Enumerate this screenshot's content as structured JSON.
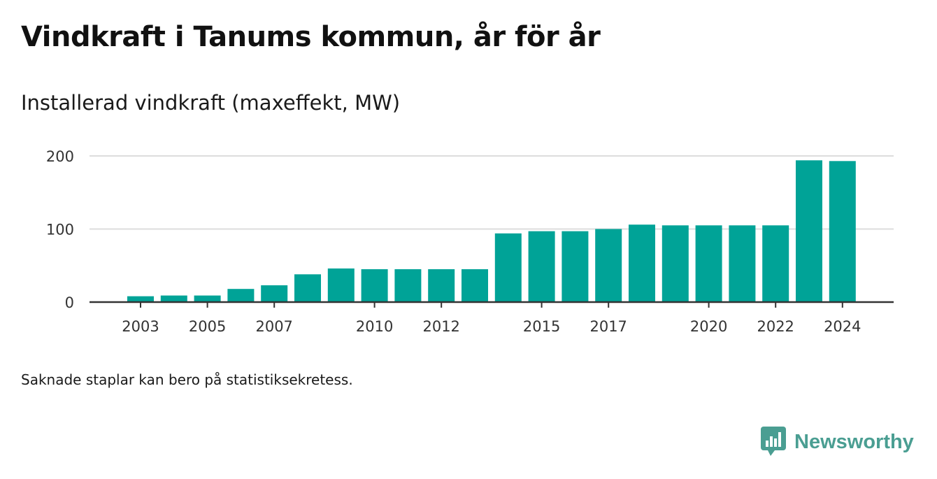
{
  "title": "Vindkraft i Tanums kommun, år för år",
  "subtitle": "Installerad vindkraft (maxeffekt, MW)",
  "footnote": "Saknade staplar kan bero på statistiksekretess.",
  "brand": {
    "name": "Newsworthy",
    "icon": "newsworthy-logo-icon",
    "color": "#4a9e92"
  },
  "colors": {
    "bar": "#00a397",
    "grid": "#dddddd",
    "axis": "#333333"
  },
  "chart_data": {
    "type": "bar",
    "title": "Vindkraft i Tanums kommun, år för år",
    "subtitle": "Installerad vindkraft (maxeffekt, MW)",
    "xlabel": "",
    "ylabel": "",
    "categories": [
      2003,
      2004,
      2005,
      2006,
      2007,
      2008,
      2009,
      2010,
      2011,
      2012,
      2013,
      2014,
      2015,
      2016,
      2017,
      2018,
      2019,
      2020,
      2021,
      2022,
      2023,
      2024
    ],
    "values": [
      8,
      9,
      9,
      18,
      23,
      38,
      46,
      45,
      45,
      45,
      45,
      94,
      97,
      97,
      100,
      106,
      105,
      105,
      105,
      105,
      194,
      193
    ],
    "x_tick_labels": [
      "2003",
      "2005",
      "2007",
      "2010",
      "2012",
      "2015",
      "2017",
      "2020",
      "2022",
      "2024"
    ],
    "y_ticks": [
      0,
      100,
      200
    ],
    "ylim": [
      0,
      200
    ],
    "grid": true,
    "legend": "none"
  }
}
